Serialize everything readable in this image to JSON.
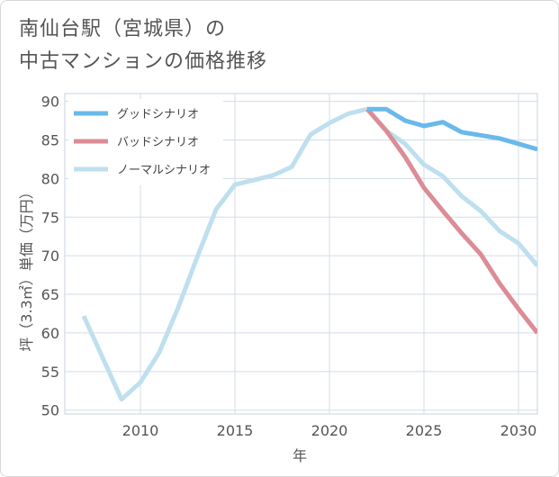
{
  "title": {
    "line1": "南仙台駅（宮城県）の",
    "line2": "中古マンションの価格推移"
  },
  "chart_data": {
    "type": "line",
    "xlabel": "年",
    "ylabel": "坪（3.3㎡）単価（万円）",
    "xlim": [
      2006,
      2031
    ],
    "ylim": [
      49.5,
      91
    ],
    "xticks": [
      2010,
      2015,
      2020,
      2025,
      2030
    ],
    "yticks": [
      50,
      55,
      60,
      65,
      70,
      75,
      80,
      85,
      90
    ],
    "grid": true,
    "legend_position": "top-left",
    "series": [
      {
        "name": "グッドシナリオ",
        "color": "#6ab9ea",
        "x": [
          2022,
          2023,
          2024,
          2025,
          2026,
          2027,
          2028,
          2029,
          2030,
          2031
        ],
        "y": [
          89.0,
          89.0,
          87.5,
          86.8,
          87.3,
          86.0,
          85.6,
          85.2,
          84.5,
          83.8
        ]
      },
      {
        "name": "バッドシナリオ",
        "color": "#dc8c96",
        "x": [
          2022,
          2023,
          2024,
          2025,
          2026,
          2027,
          2028,
          2029,
          2030,
          2031
        ],
        "y": [
          89.0,
          86.2,
          82.8,
          78.8,
          75.8,
          72.9,
          70.2,
          66.4,
          63.1,
          60.0
        ]
      },
      {
        "name": "ノーマルシナリオ",
        "color": "#bfdfee",
        "x": [
          2007,
          2008,
          2009,
          2010,
          2011,
          2012,
          2013,
          2014,
          2015,
          2016,
          2017,
          2018,
          2019,
          2020,
          2021,
          2022,
          2023,
          2024,
          2025,
          2026,
          2027,
          2028,
          2029,
          2030,
          2031
        ],
        "y": [
          62.2,
          56.8,
          51.4,
          53.6,
          57.5,
          63.3,
          69.8,
          76.0,
          79.2,
          79.8,
          80.4,
          81.5,
          85.7,
          87.2,
          88.4,
          89.0,
          86.2,
          84.5,
          81.8,
          80.3,
          77.7,
          75.8,
          73.2,
          71.6,
          68.7
        ]
      }
    ]
  }
}
